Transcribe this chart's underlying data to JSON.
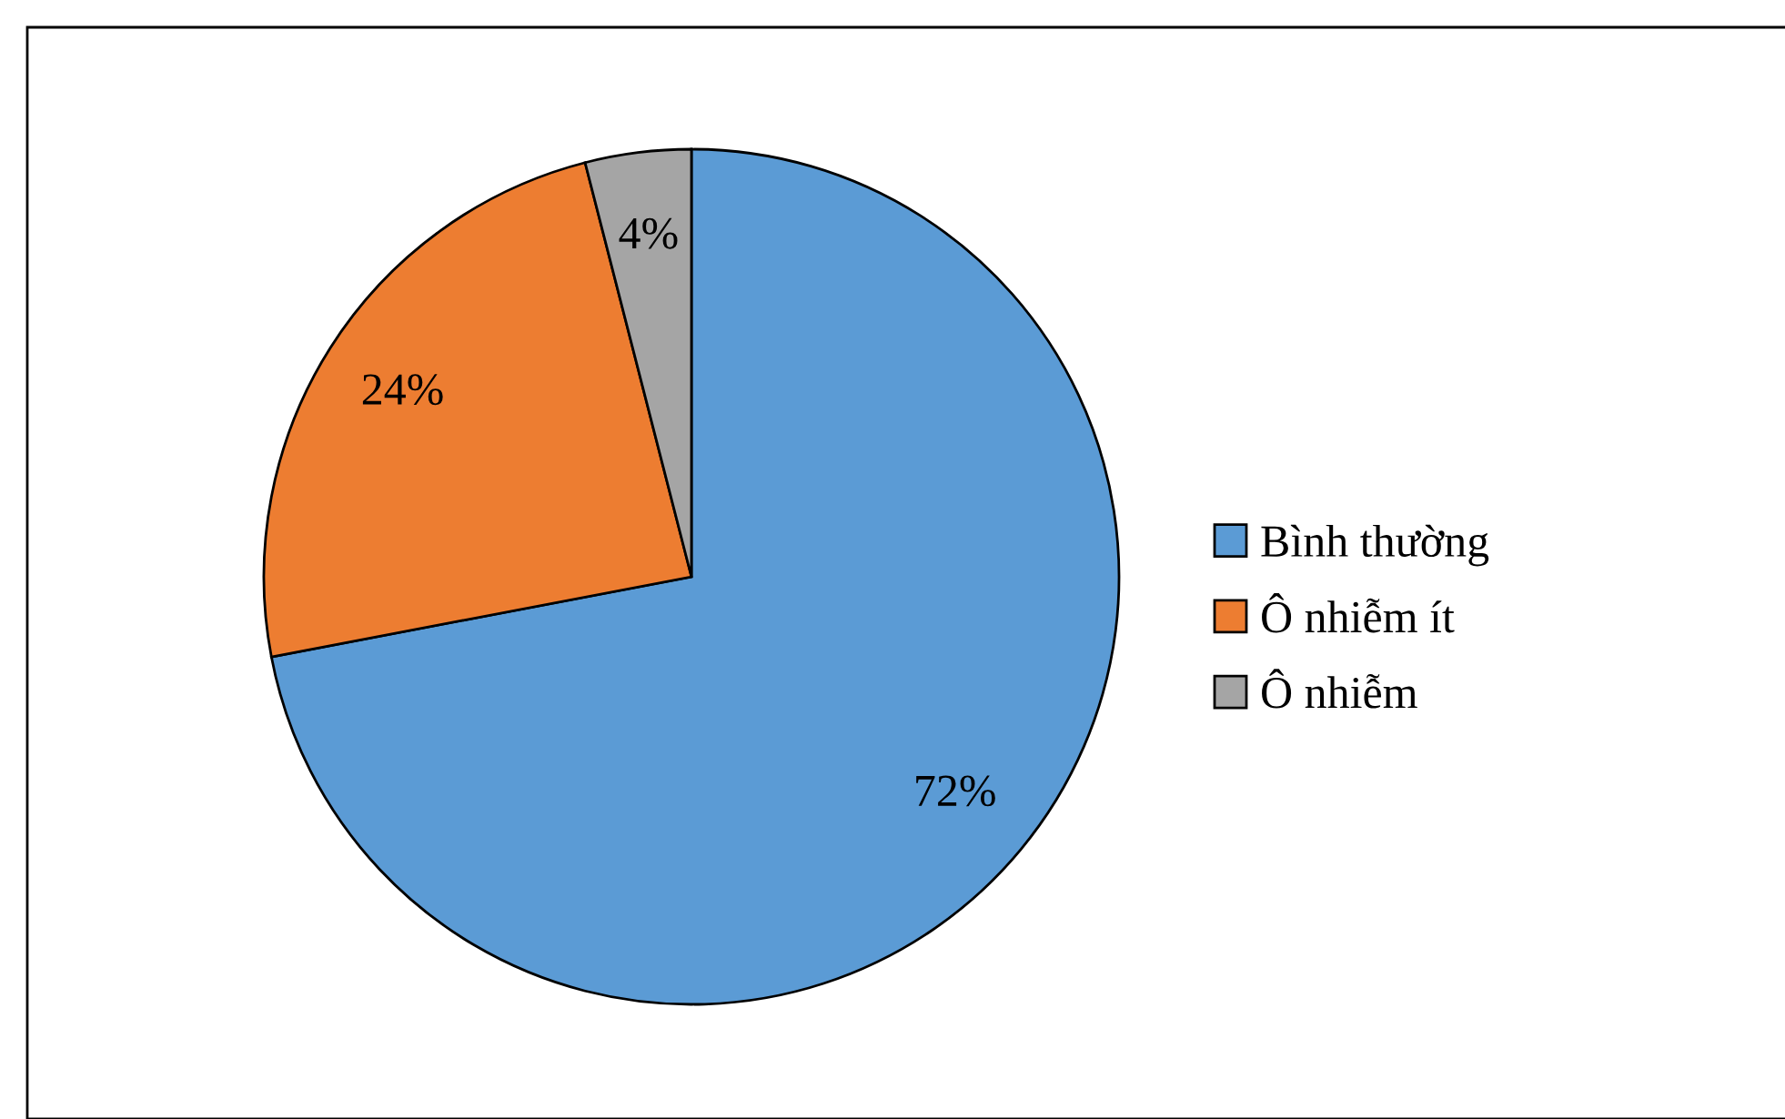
{
  "chart_data": {
    "type": "pie",
    "categories": [
      "Bình thường",
      "Ô nhiễm ít",
      "Ô nhiễm"
    ],
    "values": [
      72,
      24,
      4
    ],
    "colors": [
      "#5b9bd5",
      "#ed7d31",
      "#a5a5a5"
    ],
    "value_labels": [
      "72%",
      "24%",
      "4%"
    ],
    "legend": "right"
  }
}
